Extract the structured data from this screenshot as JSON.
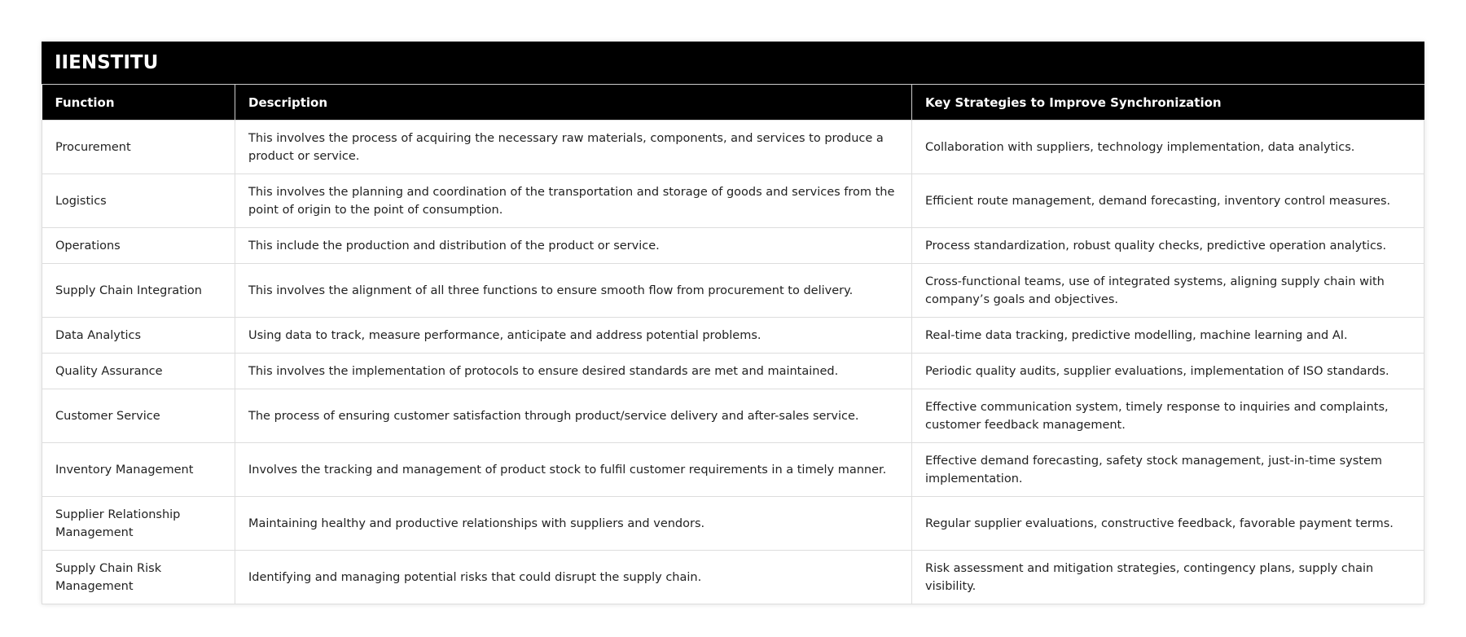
{
  "title": "IIENSTITU",
  "columns": [
    "Function",
    "Description",
    "Key Strategies to Improve Synchronization"
  ],
  "rows": [
    [
      "Procurement",
      "This involves the process of acquiring the necessary raw materials, components, and services to produce a product or service.",
      "Collaboration with suppliers, technology implementation, data analytics."
    ],
    [
      "Logistics",
      "This involves the planning and coordination of the transportation and storage of goods and services from the point of origin to the point of consumption.",
      "Efficient route management, demand forecasting, inventory control measures."
    ],
    [
      "Operations",
      "This include the production and distribution of the product or service.",
      "Process standardization, robust quality checks, predictive operation analytics."
    ],
    [
      "Supply Chain Integration",
      "This involves the alignment of all three functions to ensure smooth flow from procurement to delivery.",
      "Cross-functional teams, use of integrated systems, aligning supply chain with company’s goals and objectives."
    ],
    [
      "Data Analytics",
      "Using data to track, measure performance, anticipate and address potential problems.",
      "Real-time data tracking, predictive modelling, machine learning and AI."
    ],
    [
      "Quality Assurance",
      "This involves the implementation of protocols to ensure desired standards are met and maintained.",
      "Periodic quality audits, supplier evaluations, implementation of ISO standards."
    ],
    [
      "Customer Service",
      "The process of ensuring customer satisfaction through product/service delivery and after-sales service.",
      "Effective communication system, timely response to inquiries and complaints, customer feedback management."
    ],
    [
      "Inventory Management",
      "Involves the tracking and management of product stock to fulfil customer requirements in a timely manner.",
      "Effective demand forecasting, safety stock management, just-in-time system implementation."
    ],
    [
      "Supplier Relationship Management",
      "Maintaining healthy and productive relationships with suppliers and vendors.",
      "Regular supplier evaluations, constructive feedback, favorable payment terms."
    ],
    [
      "Supply Chain Risk Management",
      "Identifying and managing potential risks that could disrupt the supply chain.",
      "Risk assessment and mitigation strategies, contingency plans, supply chain visibility."
    ]
  ]
}
